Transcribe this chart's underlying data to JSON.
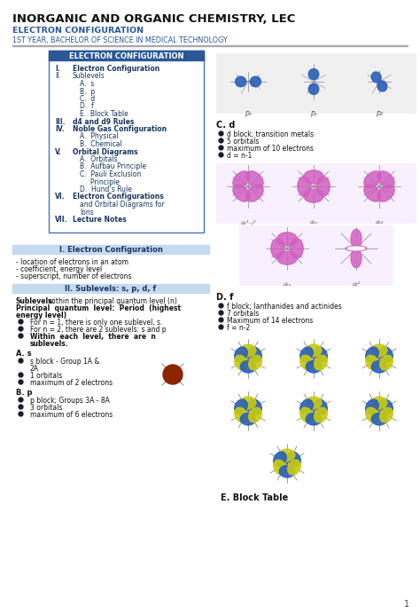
{
  "title": "INORGANIC AND ORGANIC CHEMISTRY, LEC",
  "subtitle1": "ELECTRON CONFIGURATION",
  "subtitle2": "1ST YEAR, BACHELOR OF SCIENCE IN MEDICAL TECHNOLOGY",
  "bg_color": "#ffffff",
  "header_blue": "#2B5797",
  "light_blue_bg": "#c5d9f1",
  "dark_blue_text": "#17375E",
  "toc_title": "ELECTRON CONFIGURATION",
  "toc_items": [
    [
      "I.",
      "Electron Configuration",
      true
    ],
    [
      "II.",
      "Sublevels",
      false
    ],
    [
      "",
      "A.  s",
      false
    ],
    [
      "",
      "B.  p",
      false
    ],
    [
      "",
      "C.  d",
      false
    ],
    [
      "",
      "D.  f",
      false
    ],
    [
      "",
      "E.  Block Table",
      false
    ],
    [
      "III.",
      "d4 and d9 Rules",
      true
    ],
    [
      "IV.",
      "Noble Gas Configuration",
      true
    ],
    [
      "",
      "A.  Physical",
      false
    ],
    [
      "",
      "B.  Chemical",
      false
    ],
    [
      "V.",
      "Orbital Diagrams",
      true
    ],
    [
      "",
      "A.  Orbitals",
      false
    ],
    [
      "",
      "B.  Aufbau Principle",
      false
    ],
    [
      "",
      "C.  Pauli Exclusion",
      false
    ],
    [
      "",
      "     Principle",
      false
    ],
    [
      "",
      "D.  Hund’s Rule",
      false
    ],
    [
      "VI.",
      "Electron Configurations",
      true
    ],
    [
      "",
      "and Orbital Diagrams for",
      false
    ],
    [
      "",
      "Ions",
      false
    ],
    [
      "VII.",
      "Lecture Notes",
      true
    ]
  ],
  "sec1_title": "I. Electron Configuration",
  "sec1_bullets": [
    "location of electrons in an atom",
    "coefficient, energy level",
    "superscript, number of electrons"
  ],
  "sec2_title": "II. Sublevels: s, p, d, f",
  "sec2_intro1_normal": "Sublevels:",
  "sec2_intro1_rest": " within the principal quantum level (n)",
  "sec2_intro2": "Principal  quantum  level:  Period  (highest\nenergy level)",
  "sec2_bullets": [
    [
      "normal",
      "For n = 1, there is only one sublevel, s."
    ],
    [
      "normal",
      "For n = 2, there are 2 sublevels: s and p"
    ],
    [
      "bold",
      "Within  each  level,  there  are  n\nsublevels."
    ]
  ],
  "sec_As_title": "A. s",
  "sec_As_bullets": [
    "s block - Group 1A &\n2A",
    "1 orbitals",
    "maximum of 2 electrons"
  ],
  "sec_Bp_title": "B. p",
  "sec_Bp_bullets": [
    "p block; Groups 3A - 8A",
    "3 orbitals",
    "maximum of 6 electrons"
  ],
  "right_Cd_title": "C. d",
  "right_Cd_bullets": [
    "d block; transition metals",
    "5 orbitals",
    "maximum of 10 electrons",
    "d = n-1"
  ],
  "right_Df_title": "D. f",
  "right_Df_bullets": [
    "f block; lanthanides and actinides",
    "7 orbitals",
    "Maximum of 14 electrons",
    "f = n-2"
  ],
  "right_E_title": "E. Block Table",
  "blue_orb": "#3060B0",
  "pink_orb": "#C060B0",
  "yellow_orb": "#C8CC20",
  "page_num": "1"
}
